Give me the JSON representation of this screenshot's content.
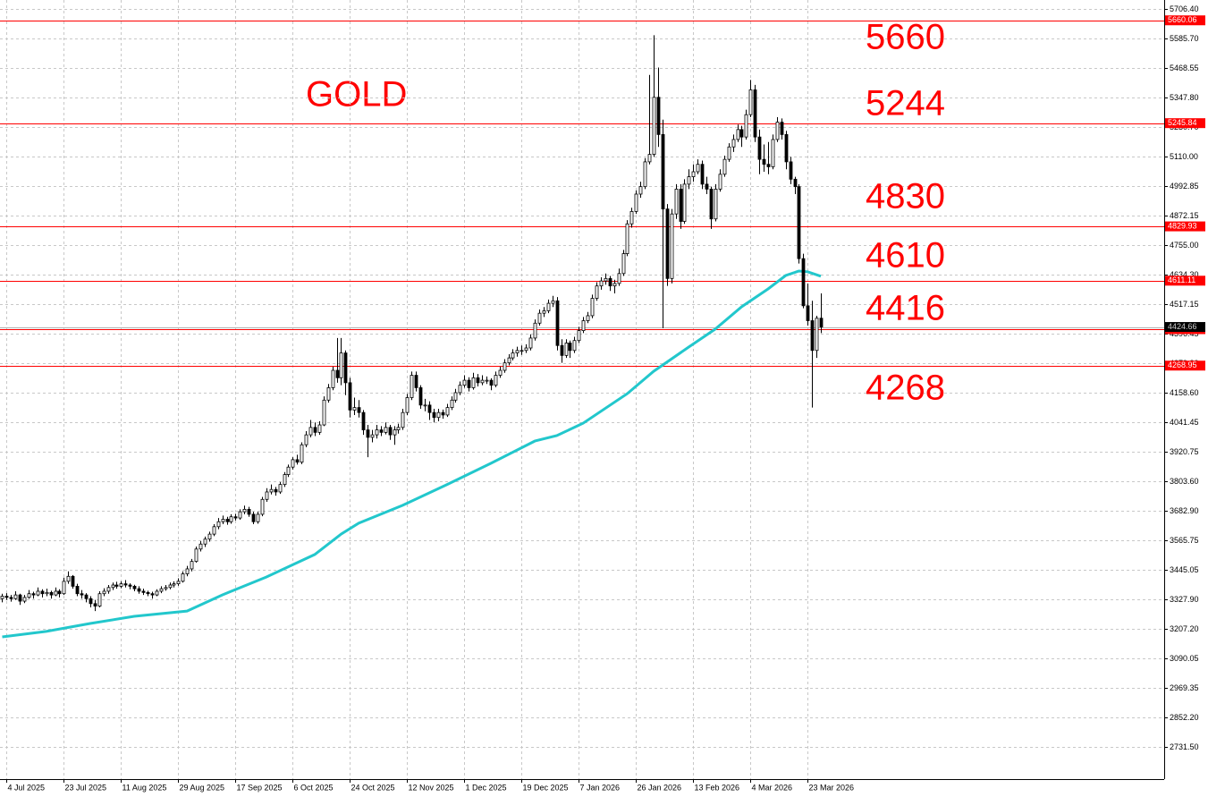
{
  "chart_data": {
    "type": "candlestick",
    "title": "GOLD",
    "annotations": [
      "5660",
      "5244",
      "4830",
      "4610",
      "4416",
      "4268"
    ],
    "levels": [
      5660.06,
      5245.84,
      4829.93,
      4611.11,
      4415.79,
      4268.95
    ],
    "level_color": "#ff0000",
    "bid": 4424.66,
    "up_color": "#ffffff",
    "down_color": "#000000",
    "wick_color": "#000000",
    "grid": true,
    "xlim": [
      -0.5,
      264
    ],
    "ylim": [
      2603,
      5742
    ],
    "xticks": [
      {
        "value": 1,
        "label": "4 Jul 2025"
      },
      {
        "value": 14,
        "label": "23 Jul 2025"
      },
      {
        "value": 27,
        "label": "11 Aug 2025"
      },
      {
        "value": 40,
        "label": "29 Aug 2025"
      },
      {
        "value": 53,
        "label": "17 Sep 2025"
      },
      {
        "value": 66,
        "label": "6 Oct 2025"
      },
      {
        "value": 79,
        "label": "24 Oct 2025"
      },
      {
        "value": 92,
        "label": "12 Nov 2025"
      },
      {
        "value": 105,
        "label": "1 Dec 2025"
      },
      {
        "value": 118,
        "label": "19 Dec 2025"
      },
      {
        "value": 131,
        "label": "7 Jan 2026"
      },
      {
        "value": 144,
        "label": "26 Jan 2026"
      },
      {
        "value": 157,
        "label": "13 Feb 2026"
      },
      {
        "value": 170,
        "label": "4 Mar 2026"
      },
      {
        "value": 183,
        "label": "23 Mar 2026"
      }
    ],
    "yticks": [
      {
        "value": 5706.4,
        "label": "5706.40"
      },
      {
        "value": 5585.7,
        "label": "5585.70"
      },
      {
        "value": 5468.55,
        "label": "5468.55"
      },
      {
        "value": 5347.8,
        "label": "5347.80"
      },
      {
        "value": 5230.7,
        "label": "5230.70"
      },
      {
        "value": 5110,
        "label": "5110.00"
      },
      {
        "value": 4992.85,
        "label": "4992.85"
      },
      {
        "value": 4872.15,
        "label": "4872.15"
      },
      {
        "value": 4755,
        "label": "4755.00"
      },
      {
        "value": 4634.3,
        "label": "4634.30"
      },
      {
        "value": 4517.15,
        "label": "4517.15"
      },
      {
        "value": 4396.45,
        "label": "4396.45"
      },
      {
        "value": 4279.3,
        "label": "4279.30"
      },
      {
        "value": 4158.6,
        "label": "4158.60"
      },
      {
        "value": 4041.45,
        "label": "4041.45"
      },
      {
        "value": 3920.75,
        "label": "3920.75"
      },
      {
        "value": 3803.6,
        "label": "3803.60"
      },
      {
        "value": 3682.9,
        "label": "3682.90"
      },
      {
        "value": 3565.75,
        "label": "3565.75"
      },
      {
        "value": 3445.05,
        "label": "3445.05"
      },
      {
        "value": 3327.9,
        "label": "3327.90"
      },
      {
        "value": 3207.2,
        "label": "3207.20"
      },
      {
        "value": 3090.05,
        "label": "3090.05"
      },
      {
        "value": 2969.35,
        "label": "2969.35"
      },
      {
        "value": 2852.2,
        "label": "2852.20"
      },
      {
        "value": 2731.5,
        "label": "2731.50"
      }
    ],
    "ma": {
      "color": "#22c7cc",
      "x": [
        0,
        10,
        20,
        30,
        42,
        50,
        60,
        71,
        77,
        81,
        91,
        101,
        111,
        121,
        126,
        132,
        142,
        148,
        156,
        162,
        168,
        174,
        178,
        181,
        183,
        186
      ],
      "values": [
        3176,
        3198,
        3230,
        3259,
        3280,
        3345,
        3417,
        3508,
        3590,
        3634,
        3706,
        3789,
        3875,
        3965,
        3987,
        4037,
        4156,
        4246,
        4344,
        4416,
        4506,
        4578,
        4632,
        4650,
        4647,
        4629
      ]
    },
    "ohlc": [
      [
        3330,
        3350,
        3315,
        3340
      ],
      [
        3340,
        3352,
        3325,
        3335
      ],
      [
        3335,
        3345,
        3318,
        3330
      ],
      [
        3330,
        3360,
        3325,
        3345
      ],
      [
        3345,
        3350,
        3305,
        3320
      ],
      [
        3320,
        3345,
        3312,
        3335
      ],
      [
        3335,
        3365,
        3330,
        3350
      ],
      [
        3350,
        3358,
        3330,
        3345
      ],
      [
        3345,
        3375,
        3340,
        3360
      ],
      [
        3360,
        3368,
        3335,
        3350
      ],
      [
        3350,
        3370,
        3340,
        3355
      ],
      [
        3355,
        3362,
        3330,
        3345
      ],
      [
        3345,
        3375,
        3340,
        3360
      ],
      [
        3360,
        3368,
        3335,
        3350
      ],
      [
        3350,
        3415,
        3345,
        3400
      ],
      [
        3400,
        3440,
        3390,
        3420
      ],
      [
        3420,
        3425,
        3370,
        3380
      ],
      [
        3380,
        3390,
        3340,
        3350
      ],
      [
        3350,
        3365,
        3330,
        3345
      ],
      [
        3345,
        3352,
        3315,
        3330
      ],
      [
        3330,
        3340,
        3295,
        3310
      ],
      [
        3310,
        3325,
        3280,
        3300
      ],
      [
        3300,
        3360,
        3295,
        3350
      ],
      [
        3350,
        3372,
        3340,
        3360
      ],
      [
        3360,
        3385,
        3350,
        3375
      ],
      [
        3375,
        3395,
        3365,
        3385
      ],
      [
        3385,
        3398,
        3370,
        3380
      ],
      [
        3380,
        3400,
        3372,
        3390
      ],
      [
        3390,
        3405,
        3375,
        3385
      ],
      [
        3385,
        3392,
        3368,
        3380
      ],
      [
        3380,
        3386,
        3360,
        3370
      ],
      [
        3370,
        3380,
        3350,
        3360
      ],
      [
        3360,
        3370,
        3345,
        3355
      ],
      [
        3355,
        3362,
        3340,
        3350
      ],
      [
        3350,
        3358,
        3330,
        3345
      ],
      [
        3345,
        3368,
        3340,
        3360
      ],
      [
        3360,
        3380,
        3352,
        3370
      ],
      [
        3370,
        3385,
        3362,
        3375
      ],
      [
        3375,
        3395,
        3368,
        3385
      ],
      [
        3385,
        3400,
        3375,
        3390
      ],
      [
        3390,
        3412,
        3382,
        3400
      ],
      [
        3400,
        3440,
        3395,
        3430
      ],
      [
        3430,
        3462,
        3420,
        3450
      ],
      [
        3450,
        3490,
        3440,
        3480
      ],
      [
        3480,
        3540,
        3475,
        3530
      ],
      [
        3530,
        3562,
        3520,
        3550
      ],
      [
        3550,
        3580,
        3538,
        3570
      ],
      [
        3570,
        3600,
        3560,
        3590
      ],
      [
        3590,
        3630,
        3582,
        3620
      ],
      [
        3620,
        3655,
        3610,
        3640
      ],
      [
        3640,
        3665,
        3630,
        3650
      ],
      [
        3650,
        3660,
        3628,
        3640
      ],
      [
        3640,
        3670,
        3632,
        3660
      ],
      [
        3660,
        3672,
        3645,
        3655
      ],
      [
        3655,
        3690,
        3648,
        3680
      ],
      [
        3680,
        3705,
        3670,
        3690
      ],
      [
        3690,
        3700,
        3660,
        3670
      ],
      [
        3670,
        3680,
        3630,
        3640
      ],
      [
        3640,
        3680,
        3632,
        3670
      ],
      [
        3670,
        3740,
        3662,
        3730
      ],
      [
        3730,
        3775,
        3720,
        3760
      ],
      [
        3760,
        3790,
        3750,
        3770
      ],
      [
        3770,
        3780,
        3745,
        3760
      ],
      [
        3760,
        3800,
        3752,
        3790
      ],
      [
        3790,
        3840,
        3780,
        3830
      ],
      [
        3830,
        3870,
        3820,
        3860
      ],
      [
        3860,
        3900,
        3850,
        3890
      ],
      [
        3890,
        3910,
        3870,
        3880
      ],
      [
        3880,
        3960,
        3872,
        3950
      ],
      [
        3950,
        4005,
        3940,
        3990
      ],
      [
        3990,
        4050,
        3980,
        4020
      ],
      [
        4020,
        4040,
        3985,
        4000
      ],
      [
        4000,
        4045,
        3990,
        4030
      ],
      [
        4030,
        4145,
        4025,
        4130
      ],
      [
        4130,
        4195,
        4120,
        4180
      ],
      [
        4180,
        4265,
        4170,
        4250
      ],
      [
        4250,
        4380,
        4200,
        4220
      ],
      [
        4220,
        4380,
        4190,
        4320
      ],
      [
        4320,
        4330,
        4150,
        4200
      ],
      [
        4200,
        4220,
        4060,
        4090
      ],
      [
        4090,
        4140,
        4070,
        4100
      ],
      [
        4100,
        4130,
        4060,
        4080
      ],
      [
        4080,
        4090,
        3990,
        4010
      ],
      [
        4010,
        4030,
        3900,
        3980
      ],
      [
        3980,
        4010,
        3960,
        3990
      ],
      [
        3990,
        4030,
        3975,
        4010
      ],
      [
        4010,
        4025,
        3985,
        4000
      ],
      [
        4000,
        4040,
        3992,
        4020
      ],
      [
        4020,
        4030,
        3970,
        3990
      ],
      [
        3990,
        4025,
        3950,
        4010
      ],
      [
        4010,
        4035,
        3995,
        4020
      ],
      [
        4020,
        4095,
        4010,
        4080
      ],
      [
        4080,
        4155,
        4070,
        4140
      ],
      [
        4140,
        4245,
        4130,
        4230
      ],
      [
        4230,
        4245,
        4165,
        4180
      ],
      [
        4180,
        4190,
        4095,
        4110
      ],
      [
        4110,
        4135,
        4085,
        4110
      ],
      [
        4110,
        4125,
        4050,
        4080
      ],
      [
        4080,
        4095,
        4040,
        4060
      ],
      [
        4060,
        4095,
        4045,
        4080
      ],
      [
        4080,
        4092,
        4055,
        4070
      ],
      [
        4070,
        4115,
        4062,
        4100
      ],
      [
        4100,
        4145,
        4090,
        4130
      ],
      [
        4130,
        4175,
        4120,
        4160
      ],
      [
        4160,
        4205,
        4150,
        4190
      ],
      [
        4190,
        4230,
        4180,
        4210
      ],
      [
        4210,
        4222,
        4165,
        4180
      ],
      [
        4180,
        4240,
        4172,
        4220
      ],
      [
        4220,
        4235,
        4185,
        4200
      ],
      [
        4200,
        4230,
        4190,
        4210
      ],
      [
        4210,
        4225,
        4195,
        4210
      ],
      [
        4210,
        4218,
        4170,
        4190
      ],
      [
        4190,
        4245,
        4182,
        4230
      ],
      [
        4230,
        4265,
        4220,
        4250
      ],
      [
        4250,
        4295,
        4240,
        4280
      ],
      [
        4280,
        4315,
        4270,
        4300
      ],
      [
        4300,
        4335,
        4290,
        4320
      ],
      [
        4320,
        4345,
        4305,
        4330
      ],
      [
        4330,
        4350,
        4312,
        4330
      ],
      [
        4330,
        4355,
        4320,
        4340
      ],
      [
        4340,
        4395,
        4330,
        4380
      ],
      [
        4380,
        4455,
        4370,
        4440
      ],
      [
        4440,
        4495,
        4430,
        4480
      ],
      [
        4480,
        4505,
        4465,
        4490
      ],
      [
        4490,
        4535,
        4480,
        4520
      ],
      [
        4520,
        4550,
        4505,
        4530
      ],
      [
        4530,
        4545,
        4330,
        4350
      ],
      [
        4350,
        4375,
        4280,
        4310
      ],
      [
        4310,
        4375,
        4300,
        4360
      ],
      [
        4360,
        4370,
        4300,
        4330
      ],
      [
        4330,
        4385,
        4320,
        4370
      ],
      [
        4370,
        4425,
        4360,
        4410
      ],
      [
        4410,
        4465,
        4400,
        4450
      ],
      [
        4450,
        4485,
        4440,
        4470
      ],
      [
        4470,
        4555,
        4460,
        4540
      ],
      [
        4540,
        4605,
        4530,
        4590
      ],
      [
        4590,
        4625,
        4575,
        4610
      ],
      [
        4610,
        4640,
        4595,
        4620
      ],
      [
        4620,
        4630,
        4570,
        4590
      ],
      [
        4590,
        4615,
        4560,
        4600
      ],
      [
        4600,
        4660,
        4590,
        4640
      ],
      [
        4640,
        4735,
        4630,
        4720
      ],
      [
        4720,
        4855,
        4710,
        4840
      ],
      [
        4840,
        4905,
        4825,
        4890
      ],
      [
        4890,
        4975,
        4880,
        4960
      ],
      [
        4960,
        5010,
        4945,
        4990
      ],
      [
        4990,
        5105,
        4980,
        5090
      ],
      [
        5090,
        5440,
        5080,
        5120
      ],
      [
        5120,
        5600,
        5110,
        5350
      ],
      [
        5350,
        5470,
        5150,
        5200
      ],
      [
        5200,
        5260,
        4420,
        4900
      ],
      [
        4900,
        4920,
        4590,
        4620
      ],
      [
        4620,
        4900,
        4600,
        4880
      ],
      [
        4880,
        5000,
        4860,
        4980
      ],
      [
        4980,
        5000,
        4820,
        4850
      ],
      [
        4850,
        5020,
        4840,
        5000
      ],
      [
        5000,
        5060,
        4980,
        5030
      ],
      [
        5030,
        5080,
        5010,
        5050
      ],
      [
        5050,
        5100,
        5040,
        5080
      ],
      [
        5080,
        5095,
        4980,
        5000
      ],
      [
        5000,
        5030,
        4960,
        4980
      ],
      [
        4980,
        4990,
        4820,
        4860
      ],
      [
        4860,
        5000,
        4850,
        4980
      ],
      [
        4980,
        5060,
        4970,
        5040
      ],
      [
        5040,
        5115,
        5030,
        5100
      ],
      [
        5100,
        5165,
        5090,
        5150
      ],
      [
        5150,
        5200,
        5130,
        5180
      ],
      [
        5180,
        5240,
        5170,
        5220
      ],
      [
        5220,
        5235,
        5150,
        5190
      ],
      [
        5190,
        5300,
        5180,
        5280
      ],
      [
        5280,
        5420,
        5270,
        5380
      ],
      [
        5380,
        5400,
        5170,
        5190
      ],
      [
        5190,
        5220,
        5040,
        5100
      ],
      [
        5100,
        5160,
        5050,
        5080
      ],
      [
        5080,
        5170,
        5040,
        5070
      ],
      [
        5070,
        5200,
        5060,
        5180
      ],
      [
        5180,
        5270,
        5170,
        5250
      ],
      [
        5250,
        5265,
        5180,
        5200
      ],
      [
        5200,
        5215,
        5060,
        5090
      ],
      [
        5090,
        5110,
        5000,
        5020
      ],
      [
        5020,
        5030,
        4960,
        4990
      ],
      [
        4990,
        5000,
        4680,
        4700
      ],
      [
        4700,
        4720,
        4500,
        4510
      ],
      [
        4510,
        4600,
        4430,
        4450
      ],
      [
        4450,
        4530,
        4100,
        4330
      ],
      [
        4330,
        4470,
        4300,
        4460
      ],
      [
        4460,
        4560,
        4400,
        4424.66
      ]
    ]
  }
}
